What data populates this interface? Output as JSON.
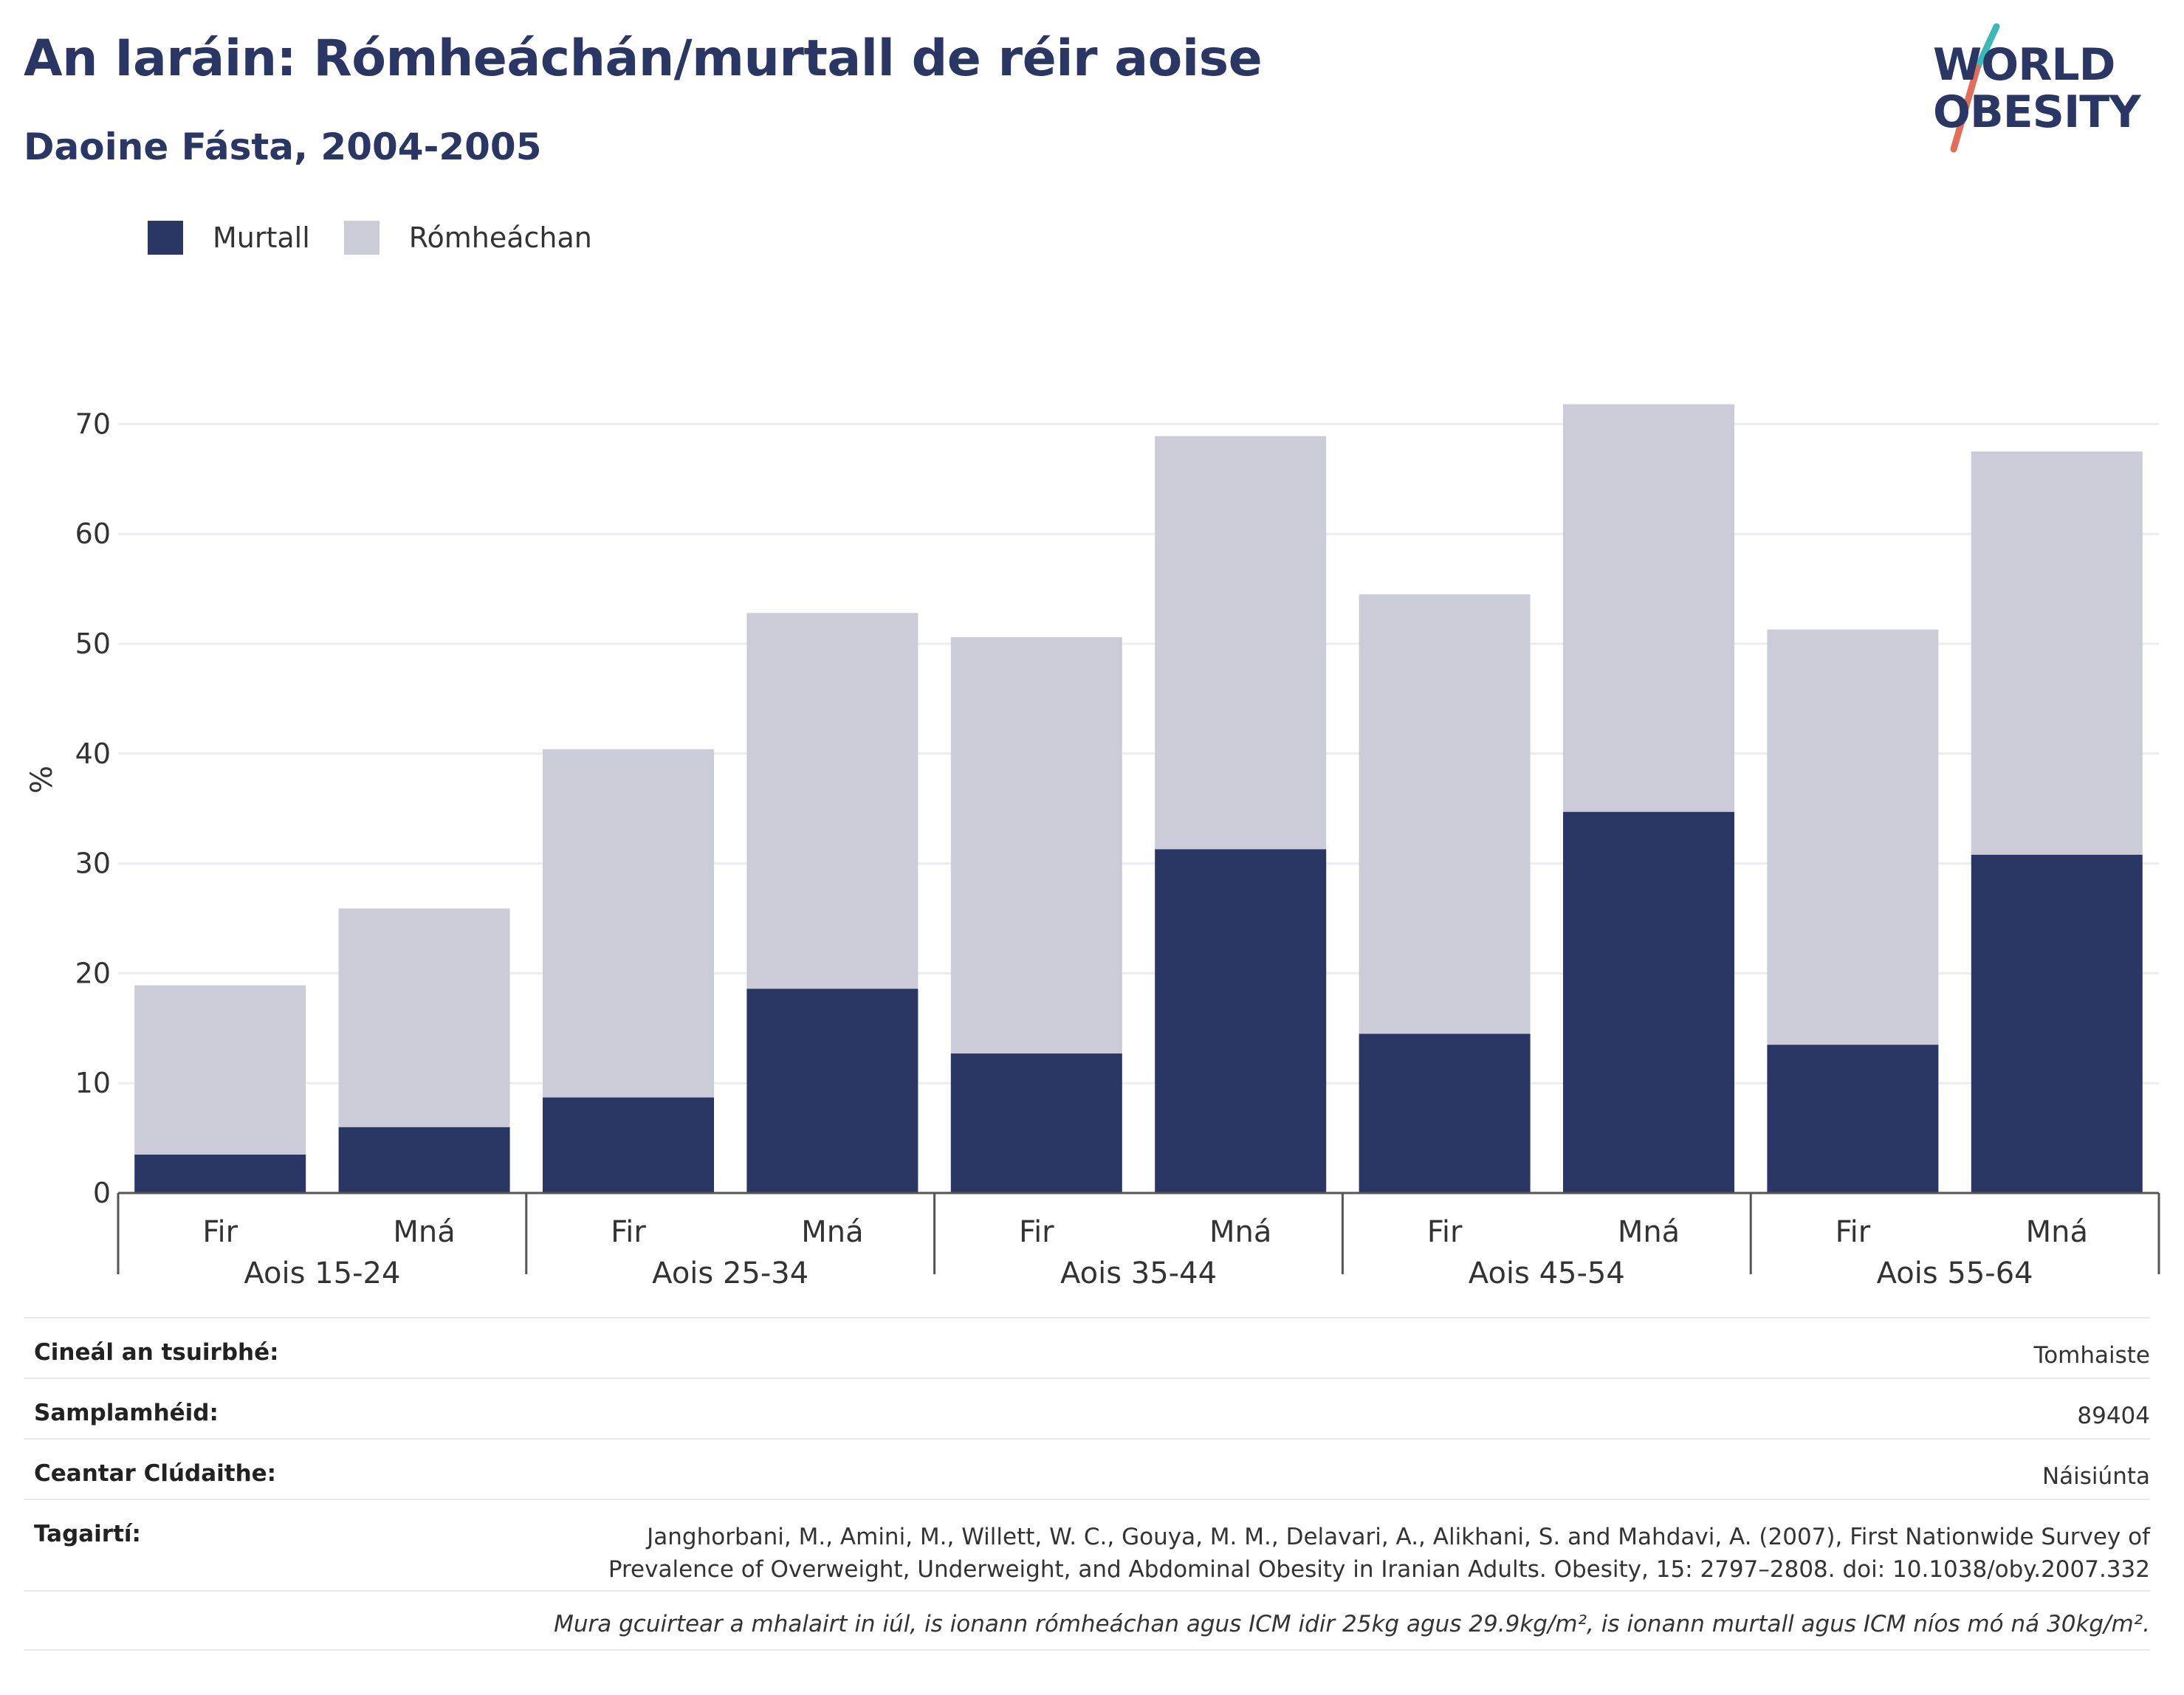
{
  "title": "An Iaráin: Rómheáchán/murtall de réir aoise",
  "subtitle": "Daoine Fásta, 2004-2005",
  "logo": {
    "line1": "WORLD",
    "line2": "OBESITY"
  },
  "legend": [
    {
      "label": "Murtall",
      "color": "#2a3663"
    },
    {
      "label": "Rómheáchan",
      "color": "#cbccd8"
    }
  ],
  "chart_data": {
    "type": "bar",
    "stacked": true,
    "ylabel": "%",
    "ylim": [
      0,
      75
    ],
    "yticks": [
      0,
      10,
      20,
      30,
      40,
      50,
      60,
      70
    ],
    "grid": true,
    "legend_position": "top-left",
    "groups": [
      {
        "label": "Aois 15-24",
        "bars": [
          {
            "label": "Fir",
            "murtall": 3.5,
            "romheachan": 15.4
          },
          {
            "label": "Mná",
            "murtall": 6.0,
            "romheachan": 19.9
          }
        ]
      },
      {
        "label": "Aois 25-34",
        "bars": [
          {
            "label": "Fir",
            "murtall": 8.7,
            "romheachan": 31.7
          },
          {
            "label": "Mná",
            "murtall": 18.6,
            "romheachan": 34.2
          }
        ]
      },
      {
        "label": "Aois 35-44",
        "bars": [
          {
            "label": "Fir",
            "murtall": 12.7,
            "romheachan": 37.9
          },
          {
            "label": "Mná",
            "murtall": 31.3,
            "romheachan": 37.6
          }
        ]
      },
      {
        "label": "Aois 45-54",
        "bars": [
          {
            "label": "Fir",
            "murtall": 14.5,
            "romheachan": 40.0
          },
          {
            "label": "Mná",
            "murtall": 34.7,
            "romheachan": 37.1
          }
        ]
      },
      {
        "label": "Aois 55-64",
        "bars": [
          {
            "label": "Fir",
            "murtall": 13.5,
            "romheachan": 37.8
          },
          {
            "label": "Mná",
            "murtall": 30.8,
            "romheachan": 36.7
          }
        ]
      }
    ],
    "series": [
      {
        "name": "Murtall",
        "key": "murtall",
        "color": "#2a3663"
      },
      {
        "name": "Rómheáchan",
        "key": "romheachan",
        "color": "#cbccd8"
      }
    ]
  },
  "meta": [
    {
      "key": "Cineál an tsuirbhé:",
      "value": "Tomhaiste"
    },
    {
      "key": "Samplamhéid:",
      "value": "89404"
    },
    {
      "key": "Ceantar Clúdaithe:",
      "value": "Náisiúnta"
    },
    {
      "key": "Tagairtí:",
      "value": "Janghorbani, M., Amini, M., Willett, W. C., Gouya, M. M., Delavari, A., Alikhani, S. and Mahdavi, A. (2007), First Nationwide Survey of Prevalence of Overweight, Underweight, and Abdominal Obesity in Iranian Adults. Obesity, 15: 2797–2808. doi: 10.1038/oby.2007.332"
    }
  ],
  "footnote": "Mura gcuirtear a mhalairt in iúl, is ionann rómheáchan agus ICM idir 25kg agus 29.9kg/m², is ionann murtall agus ICM níos mó ná 30kg/m²."
}
